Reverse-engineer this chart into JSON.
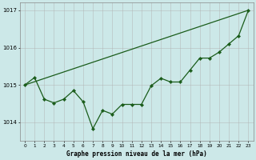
{
  "background_color": "#cce8e8",
  "grid_color": "#b0b0b0",
  "line_color": "#1a5c1a",
  "marker_color": "#1a5c1a",
  "title": "Graphe pression niveau de la mer (hPa)",
  "ylim": [
    1013.5,
    1017.2
  ],
  "xlim": [
    -0.5,
    23.5
  ],
  "yticks": [
    1014,
    1015,
    1016,
    1017
  ],
  "xticks": [
    0,
    1,
    2,
    3,
    4,
    5,
    6,
    7,
    8,
    9,
    10,
    11,
    12,
    13,
    14,
    15,
    16,
    17,
    18,
    19,
    20,
    21,
    22,
    23
  ],
  "jagged_x": [
    0,
    1,
    2,
    3,
    4,
    5,
    6,
    7,
    8,
    9,
    10,
    11,
    12,
    13,
    14,
    15,
    16,
    17,
    18,
    19,
    20,
    21,
    22,
    23
  ],
  "jagged_y": [
    1015.0,
    1015.2,
    1014.62,
    1014.52,
    1014.62,
    1014.85,
    1014.55,
    1013.83,
    1014.32,
    1014.22,
    1014.48,
    1014.48,
    1014.48,
    1014.98,
    1015.18,
    1015.08,
    1015.08,
    1015.4,
    1015.72,
    1015.72,
    1015.88,
    1016.1,
    1016.32,
    1017.0
  ],
  "trend_x": [
    0,
    23
  ],
  "trend_y": [
    1015.0,
    1017.0
  ]
}
